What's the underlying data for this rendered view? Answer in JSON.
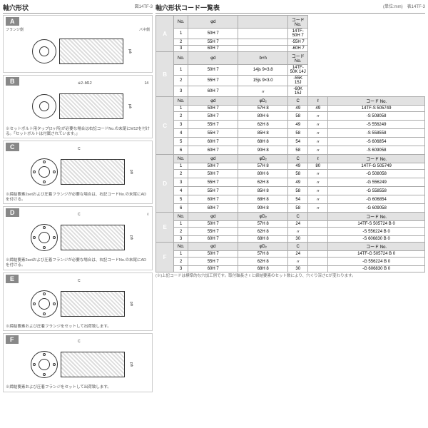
{
  "left": {
    "title": "軸穴形状",
    "ref": "図14TF-3",
    "labels": {
      "flange": "フランジ側",
      "back": "バネ側"
    },
    "sections": [
      {
        "tag": "A",
        "note": ""
      },
      {
        "tag": "B",
        "dim1": "※2−M12",
        "dim2": "14",
        "dim3": "b",
        "note": "※セットボルト用タップ(2ヶ所)が必要な場合は右記コードNo.の末尾にM12を付ける。「セットボルトは付属されています。」"
      },
      {
        "tag": "C",
        "dim1": "C",
        "note": "※締結要素2setおよび圧着フランジが必要な場合は、右記コードNo.の末尾にADを付ける。"
      },
      {
        "tag": "D",
        "dim1": "C",
        "dim2": "ℓ",
        "note": "※締結要素2setおよび圧着フランジが必要な場合は、右記コードNo.の末尾にADを付ける。"
      },
      {
        "tag": "E",
        "dim1": "C",
        "note": "※締結要素および圧着フランジをセットして出荷致します。"
      },
      {
        "tag": "F",
        "dim1": "C",
        "note": "※締結要素および圧着フランジをセットして出荷致します。"
      }
    ]
  },
  "right": {
    "title": "軸穴形状コード一覧表",
    "unit": "(単位:mm)　表14TF-3",
    "groups": [
      {
        "tag": "A",
        "head": [
          "No.",
          "φd",
          "",
          "コード No."
        ],
        "rows": [
          [
            "1",
            "50H 7",
            "",
            "14TF-50H 7"
          ],
          [
            "2",
            "55H 7",
            "",
            "-55H 7"
          ],
          [
            "3",
            "60H 7",
            "",
            "-60H 7"
          ]
        ]
      },
      {
        "tag": "B",
        "head": [
          "No.",
          "φd",
          "b×h",
          "コード No."
        ],
        "rows": [
          [
            "1",
            "50H 7",
            "14js 9×3.8",
            "14TF-50K 14J"
          ],
          [
            "2",
            "55H 7",
            "15js 9×3.0",
            "-55K 15J"
          ],
          [
            "3",
            "60H 7",
            "〃",
            "-60K 15J"
          ]
        ]
      },
      {
        "tag": "C",
        "head": [
          "No.",
          "φd",
          "φD₂",
          "C",
          "ℓ",
          "コード No."
        ],
        "rows": [
          [
            "1",
            "50H 7",
            "57H 8",
            "49",
            "49",
            "14TF-S 505749"
          ],
          [
            "2",
            "50H 7",
            "80H 6",
            "58",
            "〃",
            "-S 508058"
          ],
          [
            "3",
            "55H 7",
            "62H 8",
            "49",
            "〃",
            "-S 556249"
          ],
          [
            "4",
            "55H 7",
            "85H 8",
            "58",
            "〃",
            "-S 558558"
          ],
          [
            "5",
            "60H 7",
            "68H 8",
            "54",
            "〃",
            "-S 606854"
          ],
          [
            "6",
            "60H 7",
            "90H 8",
            "58",
            "〃",
            "-S 609058"
          ]
        ]
      },
      {
        "tag": "D",
        "head": [
          "No.",
          "φd",
          "φD₂",
          "C",
          "ℓ",
          "コード No."
        ],
        "rows": [
          [
            "1",
            "50H 7",
            "57H 8",
            "49",
            "80",
            "14TF-G 505749"
          ],
          [
            "2",
            "50H 7",
            "80H 6",
            "58",
            "〃",
            "-G 508058"
          ],
          [
            "3",
            "55H 7",
            "62H 8",
            "49",
            "〃",
            "-G 556249"
          ],
          [
            "4",
            "55H 7",
            "85H 8",
            "58",
            "〃",
            "-G 558558"
          ],
          [
            "5",
            "60H 7",
            "68H 8",
            "54",
            "〃",
            "-G 606854"
          ],
          [
            "6",
            "60H 7",
            "90H 8",
            "58",
            "〃",
            "-G 609058"
          ]
        ]
      },
      {
        "tag": "E",
        "head": [
          "No.",
          "φd",
          "φD₂",
          "C",
          "",
          "コード No."
        ],
        "rows": [
          [
            "1",
            "50H 7",
            "57H 8",
            "24",
            "",
            "14TF-S 505724 B 0"
          ],
          [
            "2",
            "55H 7",
            "62H 8",
            "〃",
            "",
            "-S 556224 B 0"
          ],
          [
            "3",
            "60H 7",
            "68H 8",
            "30",
            "",
            "-S 606830 B 0"
          ]
        ]
      },
      {
        "tag": "F",
        "head": [
          "No.",
          "φd",
          "φD₂",
          "C",
          "",
          "コード No."
        ],
        "rows": [
          [
            "1",
            "50H 7",
            "57H 8",
            "24",
            "",
            "14TF-G 505724 B 0"
          ],
          [
            "2",
            "55H 7",
            "62H 8",
            "〃",
            "",
            "-G 556224 B 0"
          ],
          [
            "3",
            "60H 7",
            "68H 8",
            "30",
            "",
            "-G 606830 B 0"
          ]
        ]
      }
    ],
    "bignote": "(※)上記コードは標準的な穴加工例です。取付軸長さ ℓ と締結要素のセット数により、穴ぐり深さCが変わります。"
  },
  "colors": {
    "tag_bg": "#888888",
    "header_bg": "#e2e2e2",
    "border": "#aaaaaa"
  }
}
